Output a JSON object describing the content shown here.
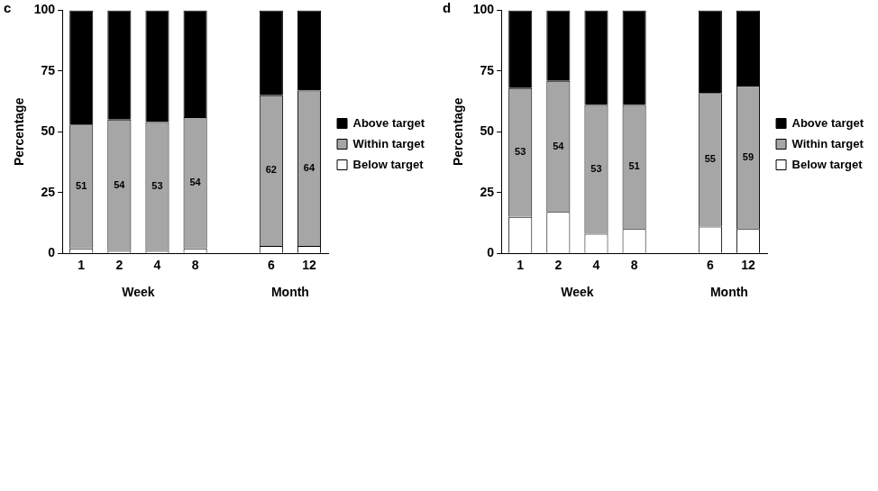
{
  "chart_data": [
    {
      "type": "bar",
      "panel": "c",
      "y_label": "Percentage",
      "categories": [
        "1",
        "2",
        "4",
        "8",
        null,
        "6",
        "12"
      ],
      "x_groups": [
        {
          "label": "Week",
          "categories": [
            "1",
            "2",
            "4",
            "8"
          ]
        },
        {
          "label": "Month",
          "categories": [
            "6",
            "12"
          ]
        }
      ],
      "series": [
        {
          "name": "Below target",
          "color": "#ffffff",
          "values": [
            2,
            1,
            1,
            2,
            null,
            3,
            3
          ]
        },
        {
          "name": "Within target",
          "color": "#a6a6a6",
          "values": [
            51,
            54,
            53,
            54,
            null,
            62,
            64
          ],
          "data_labels": true
        },
        {
          "name": "Above target",
          "color": "#000000",
          "values": [
            47,
            45,
            46,
            44,
            null,
            35,
            33
          ]
        }
      ],
      "ylim": [
        0,
        100
      ],
      "yticks": [
        0,
        25,
        50,
        75,
        100
      ],
      "stacked": true,
      "grid": false,
      "legend": "right"
    },
    {
      "type": "bar",
      "panel": "d",
      "y_label": "Percentage",
      "categories": [
        "1",
        "2",
        "4",
        "8",
        null,
        "6",
        "12"
      ],
      "x_groups": [
        {
          "label": "Week",
          "categories": [
            "1",
            "2",
            "4",
            "8"
          ]
        },
        {
          "label": "Month",
          "categories": [
            "6",
            "12"
          ]
        }
      ],
      "series": [
        {
          "name": "Below target",
          "color": "#ffffff",
          "values": [
            15,
            17,
            8,
            10,
            null,
            11,
            10
          ]
        },
        {
          "name": "Within target",
          "color": "#a6a6a6",
          "values": [
            53,
            54,
            53,
            51,
            null,
            55,
            59
          ],
          "data_labels": true
        },
        {
          "name": "Above target",
          "color": "#000000",
          "values": [
            32,
            29,
            39,
            39,
            null,
            34,
            31
          ]
        }
      ],
      "ylim": [
        0,
        100
      ],
      "yticks": [
        0,
        25,
        50,
        75,
        100
      ],
      "stacked": true,
      "grid": false,
      "legend": "right"
    }
  ]
}
